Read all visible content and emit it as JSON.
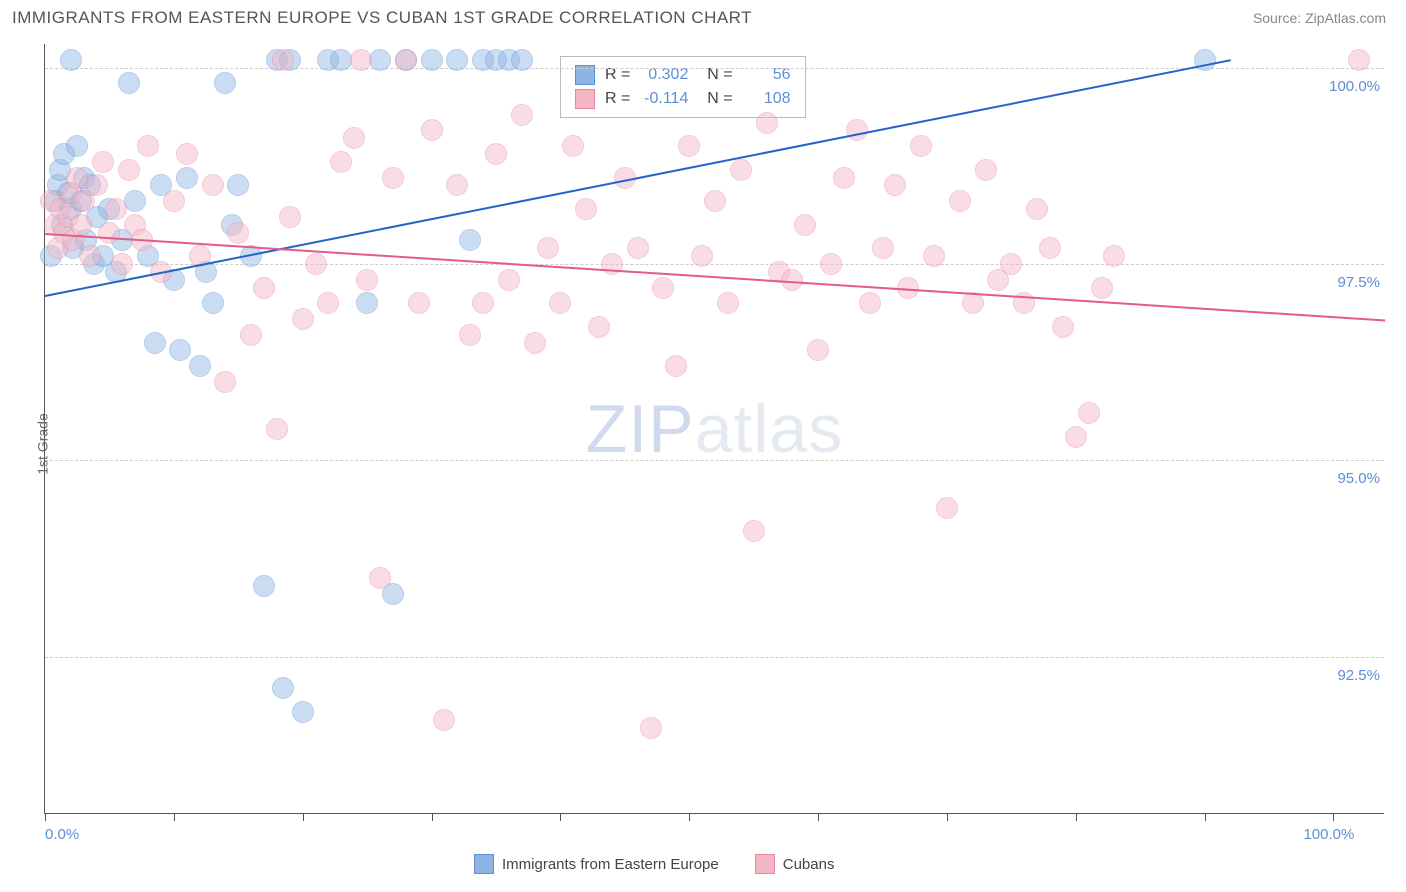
{
  "header": {
    "title": "IMMIGRANTS FROM EASTERN EUROPE VS CUBAN 1ST GRADE CORRELATION CHART",
    "source": "Source: ZipAtlas.com"
  },
  "chart": {
    "type": "scatter",
    "y_axis_title": "1st Grade",
    "background_color": "#ffffff",
    "grid_color": "#cccccc",
    "axis_color": "#555555",
    "xlim": [
      0,
      104
    ],
    "ylim": [
      90.5,
      100.3
    ],
    "x_ticks": [
      0,
      10,
      20,
      30,
      40,
      50,
      60,
      70,
      80,
      90,
      100
    ],
    "x_tick_labels": [
      {
        "value": 0,
        "label": "0.0%"
      },
      {
        "value": 100,
        "label": "100.0%"
      }
    ],
    "y_ticks": [
      {
        "value": 92.5,
        "label": "92.5%"
      },
      {
        "value": 95.0,
        "label": "95.0%"
      },
      {
        "value": 97.5,
        "label": "97.5%"
      },
      {
        "value": 100.0,
        "label": "100.0%"
      }
    ],
    "marker_radius": 11,
    "marker_opacity": 0.45,
    "series": [
      {
        "name": "Immigrants from Eastern Europe",
        "color_fill": "#8db4e3",
        "color_stroke": "#5b8fd6",
        "r": 0.302,
        "n": 56,
        "trend": {
          "x1": 0,
          "y1": 97.1,
          "x2": 92,
          "y2": 100.1,
          "color": "#2563c9",
          "width": 2
        },
        "points": [
          [
            0.5,
            97.6
          ],
          [
            0.8,
            98.3
          ],
          [
            1.0,
            98.5
          ],
          [
            1.2,
            98.7
          ],
          [
            1.3,
            98.0
          ],
          [
            1.5,
            98.9
          ],
          [
            1.8,
            98.4
          ],
          [
            2.0,
            98.2
          ],
          [
            2.0,
            100.1
          ],
          [
            2.2,
            97.7
          ],
          [
            2.5,
            99.0
          ],
          [
            2.8,
            98.3
          ],
          [
            3.0,
            98.6
          ],
          [
            3.2,
            97.8
          ],
          [
            3.5,
            98.5
          ],
          [
            3.8,
            97.5
          ],
          [
            4.0,
            98.1
          ],
          [
            4.5,
            97.6
          ],
          [
            5.0,
            98.2
          ],
          [
            5.5,
            97.4
          ],
          [
            6.0,
            97.8
          ],
          [
            6.5,
            99.8
          ],
          [
            7.0,
            98.3
          ],
          [
            8.0,
            97.6
          ],
          [
            8.5,
            96.5
          ],
          [
            9.0,
            98.5
          ],
          [
            10.0,
            97.3
          ],
          [
            10.5,
            96.4
          ],
          [
            11.0,
            98.6
          ],
          [
            12.0,
            96.2
          ],
          [
            12.5,
            97.4
          ],
          [
            13.0,
            97.0
          ],
          [
            14.0,
            99.8
          ],
          [
            14.5,
            98.0
          ],
          [
            15.0,
            98.5
          ],
          [
            16.0,
            97.6
          ],
          [
            17.0,
            93.4
          ],
          [
            18.0,
            100.1
          ],
          [
            18.5,
            92.1
          ],
          [
            19.0,
            100.1
          ],
          [
            20.0,
            91.8
          ],
          [
            22.0,
            100.1
          ],
          [
            23.0,
            100.1
          ],
          [
            25.0,
            97.0
          ],
          [
            26.0,
            100.1
          ],
          [
            27.0,
            93.3
          ],
          [
            28.0,
            100.1
          ],
          [
            30.0,
            100.1
          ],
          [
            32.0,
            100.1
          ],
          [
            33.0,
            97.8
          ],
          [
            34.0,
            100.1
          ],
          [
            35.0,
            100.1
          ],
          [
            36.0,
            100.1
          ],
          [
            37.0,
            100.1
          ],
          [
            90.0,
            100.1
          ]
        ]
      },
      {
        "name": "Cubans",
        "color_fill": "#f5b6c4",
        "color_stroke": "#e687a2",
        "r": -0.114,
        "n": 108,
        "trend": {
          "x1": 0,
          "y1": 97.9,
          "x2": 104,
          "y2": 96.8,
          "color": "#e45a8a",
          "width": 2
        },
        "points": [
          [
            0.5,
            98.3
          ],
          [
            0.8,
            98.0
          ],
          [
            1.0,
            97.7
          ],
          [
            1.2,
            98.2
          ],
          [
            1.5,
            97.9
          ],
          [
            1.8,
            98.1
          ],
          [
            2.0,
            98.4
          ],
          [
            2.2,
            97.8
          ],
          [
            2.5,
            98.6
          ],
          [
            2.8,
            98.0
          ],
          [
            3.0,
            98.3
          ],
          [
            3.5,
            97.6
          ],
          [
            4.0,
            98.5
          ],
          [
            4.5,
            98.8
          ],
          [
            5.0,
            97.9
          ],
          [
            5.5,
            98.2
          ],
          [
            6.0,
            97.5
          ],
          [
            6.5,
            98.7
          ],
          [
            7.0,
            98.0
          ],
          [
            7.5,
            97.8
          ],
          [
            8.0,
            99.0
          ],
          [
            9.0,
            97.4
          ],
          [
            10.0,
            98.3
          ],
          [
            11.0,
            98.9
          ],
          [
            12.0,
            97.6
          ],
          [
            13.0,
            98.5
          ],
          [
            14.0,
            96.0
          ],
          [
            15.0,
            97.9
          ],
          [
            16.0,
            96.6
          ],
          [
            17.0,
            97.2
          ],
          [
            18.0,
            95.4
          ],
          [
            18.5,
            100.1
          ],
          [
            19.0,
            98.1
          ],
          [
            20.0,
            96.8
          ],
          [
            21.0,
            97.5
          ],
          [
            22.0,
            97.0
          ],
          [
            23.0,
            98.8
          ],
          [
            24.0,
            99.1
          ],
          [
            24.5,
            100.1
          ],
          [
            25.0,
            97.3
          ],
          [
            26.0,
            93.5
          ],
          [
            27.0,
            98.6
          ],
          [
            28.0,
            100.1
          ],
          [
            29.0,
            97.0
          ],
          [
            30.0,
            99.2
          ],
          [
            31.0,
            91.7
          ],
          [
            32.0,
            98.5
          ],
          [
            33.0,
            96.6
          ],
          [
            34.0,
            97.0
          ],
          [
            35.0,
            98.9
          ],
          [
            36.0,
            97.3
          ],
          [
            37.0,
            99.4
          ],
          [
            38.0,
            96.5
          ],
          [
            39.0,
            97.7
          ],
          [
            40.0,
            97.0
          ],
          [
            41.0,
            99.0
          ],
          [
            42.0,
            98.2
          ],
          [
            43.0,
            96.7
          ],
          [
            44.0,
            97.5
          ],
          [
            45.0,
            98.6
          ],
          [
            46.0,
            97.7
          ],
          [
            47.0,
            91.6
          ],
          [
            48.0,
            97.2
          ],
          [
            49.0,
            96.2
          ],
          [
            50.0,
            99.0
          ],
          [
            51.0,
            97.6
          ],
          [
            52.0,
            98.3
          ],
          [
            53.0,
            97.0
          ],
          [
            54.0,
            98.7
          ],
          [
            55.0,
            94.1
          ],
          [
            56.0,
            99.3
          ],
          [
            57.0,
            97.4
          ],
          [
            58.0,
            97.3
          ],
          [
            59.0,
            98.0
          ],
          [
            60.0,
            96.4
          ],
          [
            61.0,
            97.5
          ],
          [
            62.0,
            98.6
          ],
          [
            63.0,
            99.2
          ],
          [
            64.0,
            97.0
          ],
          [
            65.0,
            97.7
          ],
          [
            66.0,
            98.5
          ],
          [
            67.0,
            97.2
          ],
          [
            68.0,
            99.0
          ],
          [
            69.0,
            97.6
          ],
          [
            70.0,
            94.4
          ],
          [
            71.0,
            98.3
          ],
          [
            72.0,
            97.0
          ],
          [
            73.0,
            98.7
          ],
          [
            74.0,
            97.3
          ],
          [
            75.0,
            97.5
          ],
          [
            76.0,
            97.0
          ],
          [
            77.0,
            98.2
          ],
          [
            78.0,
            97.7
          ],
          [
            79.0,
            96.7
          ],
          [
            80.0,
            95.3
          ],
          [
            81.0,
            95.6
          ],
          [
            82.0,
            97.2
          ],
          [
            83.0,
            97.6
          ],
          [
            102.0,
            100.1
          ]
        ]
      }
    ],
    "legend_bottom": [
      {
        "label": "Immigrants from Eastern Europe",
        "fill": "#8db4e3",
        "stroke": "#5b8fd6"
      },
      {
        "label": "Cubans",
        "fill": "#f5b6c4",
        "stroke": "#e687a2"
      }
    ],
    "watermark": {
      "text1": "ZIP",
      "text2": "atlas"
    }
  }
}
